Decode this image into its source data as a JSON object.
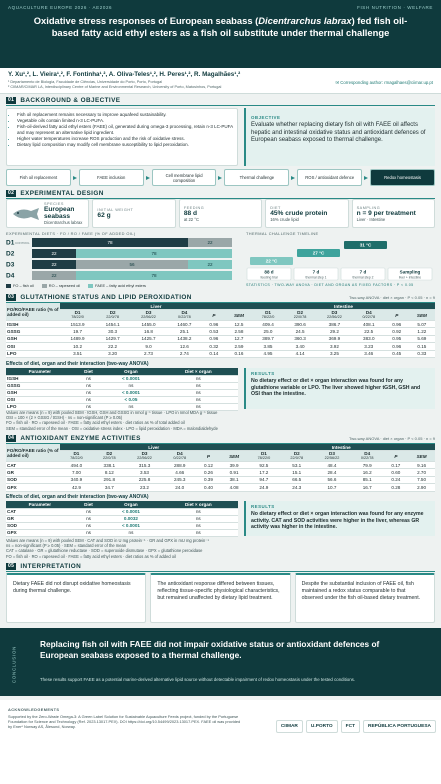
{
  "header": {
    "conference": "AQUACULTURE EUROPE 2026 · AE2026",
    "topic": "FISH NUTRITION · WELFARE",
    "title_pre": "Oxidative stress responses of European seabass (",
    "title_species": "Dicentrarchus labrax",
    "title_post": ") fed fish oil-based fatty acid ethyl esters as a fish oil substitute under thermal challenge"
  },
  "authors": {
    "names": "Y. Xu¹,², L. Vieira¹,², F. Fontinha¹,², A. Oliva-Teles¹,², H. Peres¹,², R. Magalhães¹,²",
    "affiliations": [
      "¹ Departamento de Biologia, Faculdade de Ciências, Universidade do Porto, Porto, Portugal",
      "² CIIMAR/CIMAR LA, Interdisciplinary Centre of Marine and Environmental Research, University of Porto, Matosinhos, Portugal"
    ],
    "contact": "✉ Corresponding author: rmagalhaes@ciimar.up.pt"
  },
  "background": {
    "number": "01",
    "heading": "BACKGROUND & OBJECTIVE",
    "bullets": [
      "Fish oil replacement remains necessary to improve aquafeed sustainability.",
      "Vegetable oils contain limited n-3 LC-PUFA.",
      "Fish-oil-derived fatty acid ethyl esters (FAEE) oil, generated during omega-3 processing, retain n-3 LC-PUFA and may represent an alternative lipid ingredient.",
      "Higher water temperatures increase ROS production and the risk of oxidative stress.",
      "Dietary lipid composition may modify cell membrane susceptibility to lipid peroxidation."
    ],
    "objective_label": "OBJECTIVE",
    "objective": "Evaluate whether replacing dietary fish oil with FAEE oil affects hepatic and intestinal oxidative status and antioxidant defences of European seabass exposed to thermal challenge."
  },
  "flow": [
    "Fish oil replacement",
    "FAEE inclusion",
    "Cell membrane lipid composition",
    "Thermal challenge",
    "ROS / antioxidant defence",
    "Redox homeostasis"
  ],
  "design": {
    "number": "02",
    "heading": "EXPERIMENTAL DESIGN",
    "cards": [
      {
        "label": "SPECIES",
        "value": "European seabass",
        "sub": "Dicentrarchus labrax"
      },
      {
        "label": "INITIAL WEIGHT",
        "value": "62 g"
      },
      {
        "label": "FEEDING",
        "value": "88 d",
        "sub": "at 22 °C"
      },
      {
        "label": "DIET",
        "value": "45% crude protein",
        "sub": "16% crude lipid"
      },
      {
        "label": "SAMPLING",
        "value": "n = 9 per treatment",
        "sub": "Liver · Intestine"
      }
    ],
    "diets": {
      "title": "EXPERIMENTAL DIETS · FO / RO / FAEE (% OF ADDED OIL)",
      "labels": [
        "D1",
        "D2",
        "D3",
        "D4"
      ],
      "tag": "CONTROL",
      "series": [
        {
          "name": "FO – fish oil",
          "color": "#1f3d45",
          "values": [
            78,
            22,
            22,
            0
          ]
        },
        {
          "name": "RO – rapeseed oil",
          "color": "#9aa7a8",
          "values": [
            22,
            0,
            56,
            22
          ]
        },
        {
          "name": "FAEE – fatty acid ethyl esters",
          "color": "#7fc7c0",
          "values": [
            0,
            78,
            22,
            78
          ]
        }
      ]
    },
    "thermal": {
      "title": "THERMAL CHALLENGE TIMELINE",
      "temps": [
        "22 °C",
        "27 °C",
        "31 °C"
      ],
      "steps": [
        {
          "duration": "88 d",
          "label": "feeding trial"
        },
        {
          "duration": "7 d",
          "label": "thermal step 1"
        },
        {
          "duration": "7 d",
          "label": "thermal step 2"
        },
        {
          "duration": "Sampling",
          "label": "liver + intestine"
        }
      ]
    },
    "statistics": "STATISTICS · TWO-WAY ANOVA · DIET AND ORGAN AS FIXED FACTORS · P < 0.05"
  },
  "glutathione": {
    "number": "03",
    "heading": "GLUTATHIONE STATUS AND LIPID PEROXIDATION",
    "note": "Two-way ANOVA · diet × organ · P < 0.05 · n = 9",
    "table": {
      "corner": "FO/RO/FAEE ratio (% of added oil)",
      "groups": [
        "Liver",
        "Intestine"
      ],
      "diet_columns": [
        {
          "name": "D1",
          "ratio": "78/22/0"
        },
        {
          "name": "D2",
          "ratio": "22/0/78"
        },
        {
          "name": "D3",
          "ratio": "22/56/22"
        },
        {
          "name": "D4",
          "ratio": "0/22/78"
        }
      ],
      "stat_columns": [
        "P",
        "SEM"
      ],
      "rows": [
        {
          "name": "tGSH",
          "liver": [
            "1513.9",
            "1454.1",
            "1455.0",
            "1460.7",
            "0.96",
            "12.5"
          ],
          "intestine": [
            "409.4",
            "390.6",
            "386.7",
            "408.1",
            "0.96",
            "5.07"
          ]
        },
        {
          "name": "GSSG",
          "liver": [
            "19.7",
            "30.3",
            "16.8",
            "25.1",
            "0.53",
            "2.58"
          ],
          "intestine": [
            "25.0",
            "24.5",
            "29.2",
            "22.5",
            "0.92",
            "1.22"
          ]
        },
        {
          "name": "GSH",
          "liver": [
            "1489.9",
            "1429.7",
            "1425.7",
            "1438.2",
            "0.96",
            "12.7"
          ],
          "intestine": [
            "389.7",
            "360.3",
            "369.9",
            "383.0",
            "0.95",
            "5.69"
          ]
        },
        {
          "name": "OSI",
          "liver": [
            "10.2",
            "22.2",
            "9.0",
            "12.6",
            "0.32",
            "2.59"
          ],
          "intestine": [
            "3.85",
            "3.40",
            "3.92",
            "3.23",
            "0.96",
            "0.15"
          ]
        },
        {
          "name": "LPO",
          "liver": [
            "3.51",
            "3.20",
            "2.73",
            "2.74",
            "0.14",
            "0.16"
          ],
          "intestine": [
            "4.95",
            "4.14",
            "3.25",
            "3.46",
            "0.45",
            "0.33"
          ]
        }
      ]
    },
    "effects": {
      "title": "Effects of diet, organ and their interaction (two-way ANOVA)",
      "columns": [
        "Parameter",
        "Diet",
        "Organ",
        "Diet × organ"
      ],
      "rows": [
        [
          "tGSH",
          "ns",
          "< 0.0001",
          "ns"
        ],
        [
          "GSSG",
          "ns",
          "ns",
          "ns"
        ],
        [
          "GSH",
          "ns",
          "< 0.0001",
          "ns"
        ],
        [
          "OSI",
          "ns",
          "< 0.05",
          "ns"
        ],
        [
          "LPO",
          "ns",
          "ns",
          "ns"
        ]
      ]
    },
    "results_label": "RESULTS",
    "results": "No dietary effect or diet × organ interaction was found for any glutathione variable or LPO. The liver showed higher tGSH, GSH and OSI than the intestine.",
    "footnotes": [
      "Values are means (n = 9) with pooled SEM · tGSH, GSH and GSSG in nmol g⁻¹ tissue · LPO in nmol MDA g⁻¹ tissue",
      "OSI = 100 × (2 × GSSG / tGSH) · ns = non-significant (P ≥ 0.05)",
      "FO = fish oil · RO = rapeseed oil · FAEE = fatty acid ethyl esters · diet ratios as % of total added oil",
      "SEM = standard error of the mean · OSI = oxidative stress index · LPO = lipid peroxidation · MDA = malondialdehyde"
    ]
  },
  "enzymes": {
    "number": "04",
    "heading": "ANTIOXIDANT ENZYME ACTIVITIES",
    "note": "Two-way ANOVA · diet × organ · P < 0.05 · n = 9",
    "table": {
      "corner": "FO/RO/FAEE ratio (% of added oil)",
      "groups": [
        "Liver",
        "Intestine"
      ],
      "diet_columns": [
        {
          "name": "D1",
          "ratio": "78/22/0"
        },
        {
          "name": "D2",
          "ratio": "22/0/78"
        },
        {
          "name": "D3",
          "ratio": "22/56/22"
        },
        {
          "name": "D4",
          "ratio": "0/22/78"
        }
      ],
      "stat_columns": [
        "P",
        "SEM"
      ],
      "rows": [
        {
          "name": "CAT",
          "liver": [
            "494.0",
            "338.1",
            "315.3",
            "288.9",
            "0.12",
            "39.9"
          ],
          "intestine": [
            "92.5",
            "53.1",
            "48.4",
            "79.9",
            "0.17",
            "9.16"
          ]
        },
        {
          "name": "GR",
          "liver": [
            "7.00",
            "8.12",
            "3.53",
            "4.66",
            "0.26",
            "0.91"
          ],
          "intestine": [
            "17.2",
            "15.1",
            "28.4",
            "16.2",
            "0.60",
            "2.70"
          ]
        },
        {
          "name": "SOD",
          "liver": [
            "340.9",
            "291.8",
            "225.8",
            "245.3",
            "0.39",
            "38.1"
          ],
          "intestine": [
            "94.7",
            "66.5",
            "56.6",
            "85.1",
            "0.24",
            "7.50"
          ]
        },
        {
          "name": "GPX",
          "liver": [
            "42.9",
            "34.7",
            "23.2",
            "24.0",
            "0.40",
            "4.08"
          ],
          "intestine": [
            "24.9",
            "24.3",
            "10.7",
            "16.7",
            "0.28",
            "2.90"
          ]
        }
      ]
    },
    "effects": {
      "title": "Effects of diet, organ and their interaction (two-way ANOVA)",
      "columns": [
        "Parameter",
        "Diet",
        "Organ",
        "Diet × organ"
      ],
      "rows": [
        [
          "CAT",
          "ns",
          "< 0.0001",
          "ns"
        ],
        [
          "GR",
          "ns",
          "0.0032",
          "ns"
        ],
        [
          "SOD",
          "ns",
          "< 0.0001",
          "ns"
        ],
        [
          "GPX",
          "ns",
          "ns",
          "ns"
        ]
      ]
    },
    "results_label": "RESULTS",
    "results": "No dietary effect or diet × organ interaction was found for any enzyme activity. CAT and SOD activities were higher in the liver, whereas GR activity was higher in the intestine.",
    "footnotes": [
      "Values are means (n = 9) with pooled SEM · CAT and SOD in U mg protein⁻¹ · GR and GPX in mU mg protein⁻¹",
      "ns = non-significant (P ≥ 0.05) · SEM = standard error of the mean",
      "CAT = catalase · GR = glutathione reductase · SOD = superoxide dismutase · GPX = glutathione peroxidase",
      "FO = fish oil · RO = rapeseed oil · FAEE = fatty acid ethyl esters · diet ratios as % of added oil"
    ]
  },
  "interpretation": {
    "number": "05",
    "heading": "INTERPRETATION",
    "cards": [
      "Dietary FAEE did not disrupt oxidative homeostasis during thermal challenge.",
      "The antioxidant response differed between tissues, reflecting tissue-specific physiological characteristics, but remained unaffected by dietary lipid treatment.",
      "Despite the substantial inclusion of FAEE oil, fish maintained a redox status comparable to that observed under the fish oil-based dietary treatment."
    ]
  },
  "conclusion": {
    "label": "CONCLUSION",
    "text": "Replacing fish oil with FAEE did not impair oxidative status or antioxidant defences of European seabass exposed to a thermal challenge.",
    "sub": "These results support FAEE as a potential marine-derived alternative lipid source without detectable impairment of redox homeostasis under the tested conditions."
  },
  "footer": {
    "label": "ACKNOWLEDGEMENTS",
    "text": "Supported by the Zero-Waste Omega-3: A Green Label Solution for Sustainable Aquaculture Feeds project, funded by the Portuguese Foundation for Science and Technology (Ref. 2023.13017.PEX). DOI https://doi.org/10.54499/2023.13017.PEX. FAEE oil was provided by Ener* Norway AS, Ålesund, Norway.",
    "logos": [
      "CIIMAR",
      "U.PORTO",
      "FCT",
      "REPÚBLICA PORTUGUESA"
    ]
  }
}
